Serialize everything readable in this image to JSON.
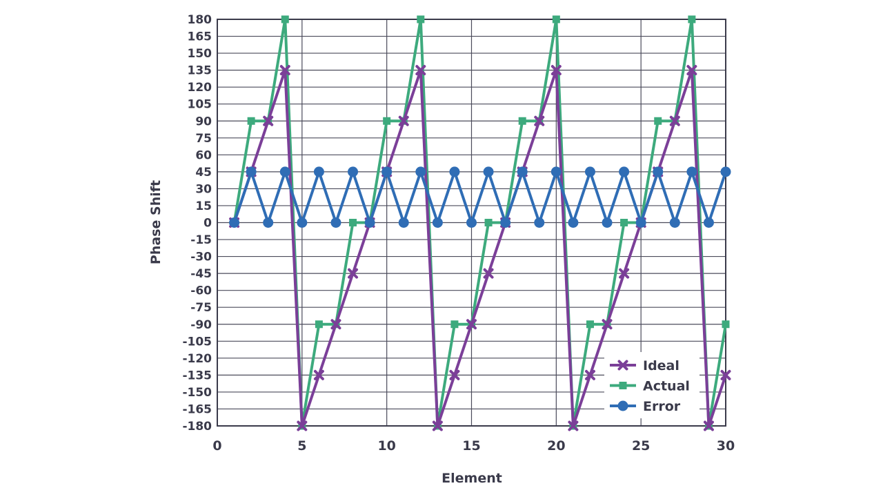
{
  "chart_data": {
    "type": "line",
    "xlabel": "Element",
    "ylabel": "Phase Shift",
    "xlim": [
      0,
      30
    ],
    "ylim": [
      -180,
      180
    ],
    "x_ticks": [
      0,
      5,
      10,
      15,
      20,
      25,
      30
    ],
    "y_ticks": [
      180,
      165,
      150,
      135,
      120,
      105,
      90,
      75,
      60,
      45,
      30,
      15,
      0,
      -15,
      -30,
      -45,
      -60,
      -75,
      -90,
      -105,
      -120,
      -135,
      -150,
      -165,
      -180
    ],
    "grid": true,
    "legend_position": "bottom-right",
    "series": [
      {
        "name": "Ideal",
        "color": "#7b3f98",
        "marker": "x",
        "points": [
          [
            1,
            0
          ],
          [
            2,
            45
          ],
          [
            3,
            90
          ],
          [
            4,
            135
          ],
          [
            5,
            -180
          ],
          [
            6,
            -135
          ],
          [
            7,
            -90
          ],
          [
            8,
            -45
          ],
          [
            9,
            0
          ],
          [
            10,
            45
          ],
          [
            11,
            90
          ],
          [
            12,
            135
          ],
          [
            13,
            -180
          ],
          [
            14,
            -135
          ],
          [
            15,
            -90
          ],
          [
            16,
            -45
          ],
          [
            17,
            0
          ],
          [
            18,
            45
          ],
          [
            19,
            90
          ],
          [
            20,
            135
          ],
          [
            21,
            -180
          ],
          [
            22,
            -135
          ],
          [
            23,
            -90
          ],
          [
            24,
            -45
          ],
          [
            25,
            0
          ],
          [
            26,
            45
          ],
          [
            27,
            90
          ],
          [
            28,
            135
          ],
          [
            29,
            -180
          ],
          [
            30,
            -135
          ]
        ]
      },
      {
        "name": "Actual",
        "color": "#3daa7d",
        "marker": "square",
        "points": [
          [
            1,
            0
          ],
          [
            2,
            90
          ],
          [
            3,
            90
          ],
          [
            4,
            180
          ],
          [
            5,
            -180
          ],
          [
            6,
            -90
          ],
          [
            7,
            -90
          ],
          [
            8,
            0
          ],
          [
            9,
            0
          ],
          [
            10,
            90
          ],
          [
            11,
            90
          ],
          [
            12,
            180
          ],
          [
            13,
            -180
          ],
          [
            14,
            -90
          ],
          [
            15,
            -90
          ],
          [
            16,
            0
          ],
          [
            17,
            0
          ],
          [
            18,
            90
          ],
          [
            19,
            90
          ],
          [
            20,
            180
          ],
          [
            21,
            -180
          ],
          [
            22,
            -90
          ],
          [
            23,
            -90
          ],
          [
            24,
            0
          ],
          [
            25,
            0
          ],
          [
            26,
            90
          ],
          [
            27,
            90
          ],
          [
            28,
            180
          ],
          [
            29,
            -180
          ],
          [
            30,
            -90
          ]
        ]
      },
      {
        "name": "Error",
        "color": "#2f6db5",
        "marker": "circle",
        "points": [
          [
            1,
            0
          ],
          [
            2,
            45
          ],
          [
            3,
            0
          ],
          [
            4,
            45
          ],
          [
            5,
            0
          ],
          [
            6,
            45
          ],
          [
            7,
            0
          ],
          [
            8,
            45
          ],
          [
            9,
            0
          ],
          [
            10,
            45
          ],
          [
            11,
            0
          ],
          [
            12,
            45
          ],
          [
            13,
            0
          ],
          [
            14,
            45
          ],
          [
            15,
            0
          ],
          [
            16,
            45
          ],
          [
            17,
            0
          ],
          [
            18,
            45
          ],
          [
            19,
            0
          ],
          [
            20,
            45
          ],
          [
            21,
            0
          ],
          [
            22,
            45
          ],
          [
            23,
            0
          ],
          [
            24,
            45
          ],
          [
            25,
            0
          ],
          [
            26,
            45
          ],
          [
            27,
            0
          ],
          [
            28,
            45
          ],
          [
            29,
            0
          ],
          [
            30,
            45
          ]
        ]
      }
    ]
  }
}
